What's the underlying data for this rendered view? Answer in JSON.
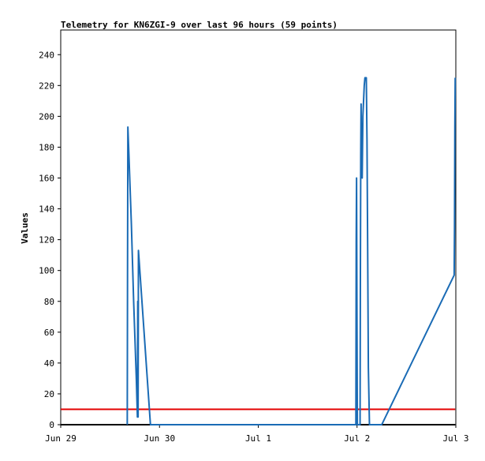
{
  "chart_data": {
    "type": "line",
    "title": "Telemetry for KN6ZGI-9 over last 96 hours (59 points)",
    "xlabel": "",
    "ylabel": "Values",
    "x_axis_type": "time",
    "xlim": [
      "2025-06-29T00:00",
      "2025-07-03T00:00"
    ],
    "ylim": [
      0,
      256
    ],
    "x_ticks": [
      {
        "label": "Jun 29",
        "value": "2025-06-29T00:00"
      },
      {
        "label": "Jun 30",
        "value": "2025-06-30T00:00"
      },
      {
        "label": "Jul 1",
        "value": "2025-07-01T00:00"
      },
      {
        "label": "Jul 2",
        "value": "2025-07-02T00:00"
      },
      {
        "label": "Jul 3",
        "value": "2025-07-03T00:00"
      }
    ],
    "y_ticks": [
      0,
      20,
      40,
      60,
      80,
      100,
      120,
      140,
      160,
      180,
      200,
      220,
      240
    ],
    "grid": false,
    "legend": "none",
    "series": [
      {
        "color": "#1a6bb5",
        "points": [
          {
            "x": "2025-06-29T16:10",
            "y": 0
          },
          {
            "x": "2025-06-29T16:14",
            "y": 97
          },
          {
            "x": "2025-06-29T16:19",
            "y": 193
          },
          {
            "x": "2025-06-29T16:34",
            "y": 175
          },
          {
            "x": "2025-06-29T17:10",
            "y": 130
          },
          {
            "x": "2025-06-29T17:43",
            "y": 80
          },
          {
            "x": "2025-06-29T18:22",
            "y": 30
          },
          {
            "x": "2025-06-29T18:38",
            "y": 5
          },
          {
            "x": "2025-06-29T18:43",
            "y": 80
          },
          {
            "x": "2025-06-29T18:48",
            "y": 5
          },
          {
            "x": "2025-06-29T18:53",
            "y": 113
          },
          {
            "x": "2025-06-29T21:48",
            "y": 0
          },
          {
            "x": "2025-07-01T23:43",
            "y": 0
          },
          {
            "x": "2025-07-01T23:48",
            "y": 120
          },
          {
            "x": "2025-07-01T23:53",
            "y": 160
          },
          {
            "x": "2025-07-01T23:58",
            "y": 80
          },
          {
            "x": "2025-07-02T00:04",
            "y": 0
          },
          {
            "x": "2025-07-02T00:44",
            "y": 0
          },
          {
            "x": "2025-07-02T00:49",
            "y": 100
          },
          {
            "x": "2025-07-02T00:54",
            "y": 175
          },
          {
            "x": "2025-07-02T00:59",
            "y": 208
          },
          {
            "x": "2025-07-02T01:04",
            "y": 170
          },
          {
            "x": "2025-07-02T01:10",
            "y": 195
          },
          {
            "x": "2025-07-02T01:15",
            "y": 160
          },
          {
            "x": "2025-07-02T01:25",
            "y": 200
          },
          {
            "x": "2025-07-02T01:45",
            "y": 220
          },
          {
            "x": "2025-07-02T01:55",
            "y": 225
          },
          {
            "x": "2025-07-02T02:15",
            "y": 225
          },
          {
            "x": "2025-07-02T02:25",
            "y": 185
          },
          {
            "x": "2025-07-02T02:35",
            "y": 113
          },
          {
            "x": "2025-07-02T02:45",
            "y": 37
          },
          {
            "x": "2025-07-02T03:01",
            "y": 0
          },
          {
            "x": "2025-07-02T06:00",
            "y": 0
          },
          {
            "x": "2025-07-02T23:36",
            "y": 97
          },
          {
            "x": "2025-07-02T23:41",
            "y": 128
          },
          {
            "x": "2025-07-02T23:46",
            "y": 193
          },
          {
            "x": "2025-07-02T23:51",
            "y": 225
          }
        ]
      },
      {
        "color": "#e30000",
        "points": [
          {
            "x": "2025-06-29T00:00",
            "y": 10
          },
          {
            "x": "2025-07-02T23:51",
            "y": 10
          }
        ]
      },
      {
        "color": "#000000",
        "points": [
          {
            "x": "2025-06-29T00:00",
            "y": 0
          },
          {
            "x": "2025-07-02T23:51",
            "y": 0
          }
        ]
      }
    ]
  }
}
